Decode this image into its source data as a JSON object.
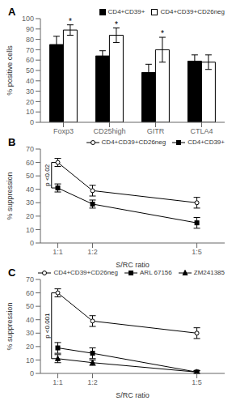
{
  "chart_data": [
    {
      "type": "bar",
      "title": "A",
      "categories": [
        "Foxp3",
        "CD25high",
        "GITR",
        "CTLA4"
      ],
      "series": [
        {
          "name": "CD4+CD39+",
          "color": "black",
          "values": [
            75,
            64,
            48,
            59
          ],
          "errors": [
            8,
            5,
            8,
            6
          ]
        },
        {
          "name": "CD4+CD39+CD26neg",
          "color": "white",
          "values": [
            89,
            84,
            70,
            58
          ],
          "errors": [
            5,
            7,
            12,
            7
          ]
        }
      ],
      "ylabel": "% positive cells",
      "ylim": [
        0,
        100
      ],
      "yticks": [
        0,
        10,
        20,
        30,
        40,
        50,
        60,
        70,
        80,
        90,
        100
      ],
      "annotations": [
        {
          "text": "*",
          "category": "Foxp3",
          "series": "CD4+CD39+CD26neg"
        },
        {
          "text": "*",
          "category": "CD25high",
          "series": "CD4+CD39+CD26neg"
        },
        {
          "text": "*",
          "category": "GITR",
          "series": "CD4+CD39+CD26neg"
        }
      ],
      "legend": "upper right",
      "grid": false
    },
    {
      "type": "line",
      "title": "B",
      "x": [
        1,
        2,
        5
      ],
      "xlim": [
        0.5,
        5.8
      ],
      "xticks": [
        {
          "value": 1,
          "label": "1:1"
        },
        {
          "value": 2,
          "label": "1:2"
        },
        {
          "value": 5,
          "label": "1:5"
        }
      ],
      "xlabel": "S/RC ratio",
      "ylabel": "% suppression",
      "ylim": [
        0,
        70
      ],
      "yticks": [
        0,
        10,
        20,
        30,
        40,
        50,
        60,
        70
      ],
      "series": [
        {
          "name": "CD4+CD39+CD26neg",
          "color": "black",
          "marker": "open_circle",
          "line_style": "solid",
          "values": [
            60,
            39,
            30
          ],
          "errors": [
            3,
            4,
            4
          ]
        },
        {
          "name": "CD4+CD39+",
          "color": "black",
          "marker": "square",
          "line_style": "solid",
          "values": [
            41,
            29,
            15
          ],
          "errors": [
            3,
            3,
            4
          ]
        }
      ],
      "annotations": [
        {
          "text": "p <0.02",
          "x": 1,
          "between": [
            "CD4+CD39+CD26neg",
            "CD4+CD39+"
          ]
        }
      ],
      "legend": "upper right",
      "grid": false
    },
    {
      "type": "line",
      "title": "C",
      "x": [
        1,
        2,
        5
      ],
      "xlim": [
        0.5,
        5.8
      ],
      "xticks": [
        {
          "value": 1,
          "label": "1:1"
        },
        {
          "value": 2,
          "label": "1:2"
        },
        {
          "value": 5,
          "label": "1:5"
        }
      ],
      "xlabel": "S/RC ratio",
      "ylabel": "% suppression",
      "ylim": [
        0,
        70
      ],
      "yticks": [
        0,
        10,
        20,
        30,
        40,
        50,
        60,
        70
      ],
      "series": [
        {
          "name": "CD4+CD39+CD26neg",
          "color": "black",
          "marker": "open_circle",
          "line_style": "solid",
          "values": [
            60,
            39,
            30
          ],
          "errors": [
            3,
            4,
            4
          ]
        },
        {
          "name": "ARL 67156",
          "color": "black",
          "marker": "square",
          "line_style": "solid",
          "values": [
            19,
            15,
            1
          ],
          "errors": [
            4,
            4,
            1
          ]
        },
        {
          "name": "ZM241385",
          "color": "black",
          "marker": "triangle",
          "line_style": "solid",
          "values": [
            11,
            8,
            1
          ],
          "errors": [
            3,
            2,
            1
          ]
        }
      ],
      "annotations": [
        {
          "text": "p <0.001",
          "x": 1,
          "between": [
            "CD4+CD39+CD26neg",
            "ZM241385"
          ]
        }
      ],
      "legend": "upper right",
      "grid": false
    }
  ]
}
